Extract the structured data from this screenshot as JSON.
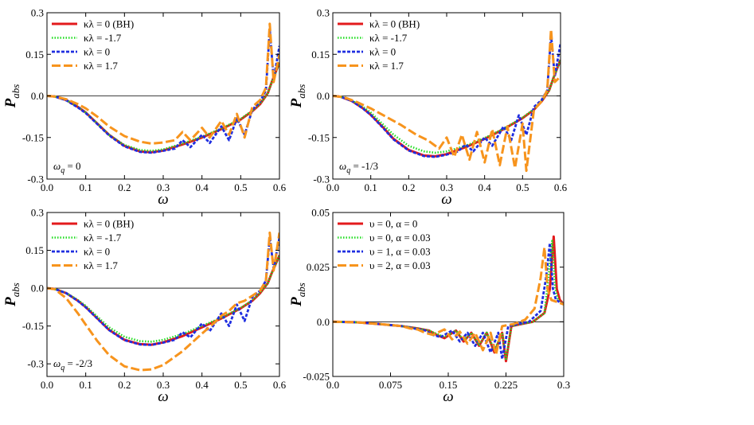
{
  "chart_data": [
    {
      "type": "line",
      "panel": "top-left",
      "xlabel": "ω",
      "ylabel": "P",
      "ylabel_sub": "abs",
      "xlim": [
        0,
        0.6
      ],
      "ylim": [
        -0.3,
        0.3
      ],
      "xticks": [
        "0.0",
        "0.1",
        "0.2",
        "0.3",
        "0.4",
        "0.5",
        "0.6"
      ],
      "yticks": [
        "-0.3",
        "-0.15",
        "0.0",
        "0.15",
        "0.3"
      ],
      "annotation": "ω",
      "annotation_sub": "q",
      "annotation_value": " = 0",
      "legend_position": "top-left",
      "series": [
        {
          "name": "κλ = 0 (BH)",
          "color": "#e31a1c",
          "style": "solid",
          "x": [
            0,
            0.02,
            0.05,
            0.08,
            0.1,
            0.13,
            0.16,
            0.2,
            0.24,
            0.27,
            0.3,
            0.35,
            0.4,
            0.45,
            0.5,
            0.53,
            0.55,
            0.57,
            0.58,
            0.6
          ],
          "y": [
            0,
            -0.002,
            -0.015,
            -0.04,
            -0.06,
            -0.1,
            -0.14,
            -0.18,
            -0.2,
            -0.203,
            -0.197,
            -0.175,
            -0.15,
            -0.12,
            -0.085,
            -0.055,
            -0.03,
            0.01,
            0.05,
            0.12
          ]
        },
        {
          "name": "κλ = -1.7",
          "color": "#22dd22",
          "style": "dotted",
          "x": [
            0,
            0.02,
            0.05,
            0.08,
            0.1,
            0.13,
            0.16,
            0.2,
            0.24,
            0.27,
            0.3,
            0.35,
            0.4,
            0.45,
            0.5,
            0.53,
            0.55,
            0.57,
            0.58,
            0.6
          ],
          "y": [
            0,
            -0.002,
            -0.015,
            -0.04,
            -0.06,
            -0.1,
            -0.14,
            -0.177,
            -0.195,
            -0.198,
            -0.193,
            -0.172,
            -0.147,
            -0.118,
            -0.083,
            -0.053,
            -0.028,
            0.01,
            0.05,
            0.12
          ]
        },
        {
          "name": "κλ = 0",
          "color": "#1f2ee0",
          "style": "dashed",
          "x": [
            0,
            0.02,
            0.05,
            0.08,
            0.1,
            0.13,
            0.16,
            0.2,
            0.24,
            0.27,
            0.3,
            0.33,
            0.35,
            0.37,
            0.4,
            0.42,
            0.45,
            0.47,
            0.49,
            0.51,
            0.53,
            0.55,
            0.565,
            0.575,
            0.585,
            0.6
          ],
          "y": [
            0,
            -0.002,
            -0.016,
            -0.042,
            -0.062,
            -0.102,
            -0.142,
            -0.182,
            -0.202,
            -0.205,
            -0.198,
            -0.19,
            -0.16,
            -0.185,
            -0.14,
            -0.17,
            -0.11,
            -0.16,
            -0.08,
            -0.14,
            -0.05,
            -0.02,
            0.02,
            0.24,
            0.06,
            0.18
          ]
        },
        {
          "name": "κλ = 1.7",
          "color": "#f7941d",
          "style": "longdash",
          "x": [
            0,
            0.02,
            0.05,
            0.08,
            0.1,
            0.13,
            0.16,
            0.2,
            0.24,
            0.27,
            0.3,
            0.33,
            0.35,
            0.37,
            0.4,
            0.42,
            0.45,
            0.47,
            0.49,
            0.51,
            0.53,
            0.55,
            0.565,
            0.575,
            0.585,
            0.6
          ],
          "y": [
            0,
            -0.002,
            -0.012,
            -0.03,
            -0.045,
            -0.075,
            -0.11,
            -0.145,
            -0.165,
            -0.172,
            -0.168,
            -0.16,
            -0.13,
            -0.16,
            -0.115,
            -0.15,
            -0.09,
            -0.14,
            -0.065,
            -0.15,
            -0.04,
            -0.015,
            0.03,
            0.26,
            0.05,
            0.15
          ]
        }
      ]
    },
    {
      "type": "line",
      "panel": "top-right",
      "xlabel": "ω",
      "ylabel": "P",
      "ylabel_sub": "abs",
      "xlim": [
        0,
        0.6
      ],
      "ylim": [
        -0.3,
        0.3
      ],
      "xticks": [
        "0.0",
        "0.1",
        "0.2",
        "0.3",
        "0.4",
        "0.5",
        "0.6"
      ],
      "yticks": [
        "-0.3",
        "-0.15",
        "0.0",
        "0.15",
        "0.3"
      ],
      "annotation": "ω",
      "annotation_sub": "q",
      "annotation_value": " = -1/3",
      "legend_position": "top-left",
      "series": [
        {
          "name": "κλ = 0 (BH)",
          "color": "#e31a1c",
          "style": "solid",
          "x": [
            0,
            0.02,
            0.05,
            0.08,
            0.1,
            0.13,
            0.16,
            0.2,
            0.24,
            0.27,
            0.3,
            0.35,
            0.4,
            0.45,
            0.5,
            0.53,
            0.55,
            0.57,
            0.58,
            0.6
          ],
          "y": [
            0,
            -0.003,
            -0.018,
            -0.045,
            -0.068,
            -0.11,
            -0.155,
            -0.195,
            -0.215,
            -0.218,
            -0.21,
            -0.185,
            -0.155,
            -0.12,
            -0.08,
            -0.05,
            -0.02,
            0.02,
            0.06,
            0.13
          ]
        },
        {
          "name": "κλ = -1.7",
          "color": "#22dd22",
          "style": "dotted",
          "x": [
            0,
            0.02,
            0.05,
            0.08,
            0.1,
            0.13,
            0.16,
            0.2,
            0.24,
            0.27,
            0.3,
            0.35,
            0.4,
            0.45,
            0.5,
            0.53,
            0.55,
            0.57,
            0.58,
            0.6
          ],
          "y": [
            0,
            -0.003,
            -0.016,
            -0.04,
            -0.06,
            -0.1,
            -0.14,
            -0.18,
            -0.2,
            -0.205,
            -0.2,
            -0.18,
            -0.152,
            -0.118,
            -0.078,
            -0.048,
            -0.018,
            0.02,
            0.06,
            0.13
          ]
        },
        {
          "name": "κλ = 0",
          "color": "#1f2ee0",
          "style": "dashed",
          "x": [
            0,
            0.02,
            0.05,
            0.08,
            0.1,
            0.13,
            0.16,
            0.2,
            0.24,
            0.27,
            0.3,
            0.33,
            0.35,
            0.37,
            0.4,
            0.42,
            0.45,
            0.47,
            0.49,
            0.51,
            0.53,
            0.55,
            0.565,
            0.575,
            0.585,
            0.6
          ],
          "y": [
            0,
            -0.003,
            -0.018,
            -0.046,
            -0.069,
            -0.112,
            -0.157,
            -0.197,
            -0.217,
            -0.22,
            -0.212,
            -0.2,
            -0.175,
            -0.2,
            -0.15,
            -0.18,
            -0.11,
            -0.16,
            -0.07,
            -0.14,
            -0.04,
            -0.015,
            0.02,
            0.22,
            0.07,
            0.19
          ]
        },
        {
          "name": "κλ = 1.7",
          "color": "#f7941d",
          "style": "longdash",
          "x": [
            0,
            0.03,
            0.06,
            0.1,
            0.14,
            0.18,
            0.22,
            0.25,
            0.28,
            0.3,
            0.32,
            0.34,
            0.36,
            0.38,
            0.4,
            0.42,
            0.44,
            0.46,
            0.48,
            0.5,
            0.51,
            0.53,
            0.55,
            0.565,
            0.575,
            0.585,
            0.6
          ],
          "y": [
            0,
            -0.005,
            -0.02,
            -0.045,
            -0.075,
            -0.105,
            -0.14,
            -0.16,
            -0.19,
            -0.15,
            -0.22,
            -0.14,
            -0.23,
            -0.13,
            -0.24,
            -0.12,
            -0.25,
            -0.11,
            -0.26,
            -0.1,
            -0.27,
            -0.05,
            -0.02,
            0.02,
            0.24,
            0.05,
            0.07
          ]
        }
      ]
    },
    {
      "type": "line",
      "panel": "bottom-left",
      "xlabel": "ω",
      "ylabel": "P",
      "ylabel_sub": "abs",
      "xlim": [
        0,
        0.6
      ],
      "ylim": [
        -0.35,
        0.3
      ],
      "xticks": [
        "0.0",
        "0.1",
        "0.2",
        "0.3",
        "0.4",
        "0.5",
        "0.6"
      ],
      "yticks": [
        "-0.3",
        "-0.15",
        "0.0",
        "0.15",
        "0.3"
      ],
      "annotation": "ω",
      "annotation_sub": "q",
      "annotation_value": " = -2/3",
      "legend_position": "top-left",
      "series": [
        {
          "name": "κλ = 0 (BH)",
          "color": "#e31a1c",
          "style": "solid",
          "x": [
            0,
            0.02,
            0.05,
            0.08,
            0.1,
            0.13,
            0.16,
            0.2,
            0.24,
            0.27,
            0.3,
            0.35,
            0.4,
            0.45,
            0.5,
            0.53,
            0.55,
            0.57,
            0.58,
            0.6
          ],
          "y": [
            0,
            -0.003,
            -0.02,
            -0.05,
            -0.075,
            -0.12,
            -0.165,
            -0.205,
            -0.222,
            -0.224,
            -0.215,
            -0.19,
            -0.155,
            -0.12,
            -0.08,
            -0.05,
            -0.02,
            0.02,
            0.06,
            0.13
          ]
        },
        {
          "name": "κλ = -1.7",
          "color": "#22dd22",
          "style": "dotted",
          "x": [
            0,
            0.02,
            0.05,
            0.08,
            0.1,
            0.13,
            0.16,
            0.2,
            0.24,
            0.27,
            0.3,
            0.35,
            0.4,
            0.45,
            0.5,
            0.53,
            0.55,
            0.57,
            0.58,
            0.6
          ],
          "y": [
            0,
            -0.003,
            -0.019,
            -0.047,
            -0.07,
            -0.113,
            -0.155,
            -0.193,
            -0.21,
            -0.212,
            -0.205,
            -0.182,
            -0.15,
            -0.117,
            -0.078,
            -0.048,
            -0.018,
            0.02,
            0.06,
            0.13
          ]
        },
        {
          "name": "κλ = 0",
          "color": "#1f2ee0",
          "style": "dashed",
          "x": [
            0,
            0.02,
            0.05,
            0.08,
            0.1,
            0.13,
            0.16,
            0.2,
            0.24,
            0.27,
            0.3,
            0.33,
            0.35,
            0.37,
            0.4,
            0.42,
            0.45,
            0.47,
            0.49,
            0.51,
            0.53,
            0.55,
            0.565,
            0.575,
            0.585,
            0.6
          ],
          "y": [
            0,
            -0.003,
            -0.02,
            -0.051,
            -0.076,
            -0.121,
            -0.166,
            -0.206,
            -0.223,
            -0.225,
            -0.216,
            -0.205,
            -0.175,
            -0.195,
            -0.14,
            -0.17,
            -0.1,
            -0.15,
            -0.065,
            -0.13,
            -0.035,
            -0.01,
            0.03,
            0.2,
            0.08,
            0.2
          ]
        },
        {
          "name": "κλ = 1.7",
          "color": "#f7941d",
          "style": "longdash",
          "x": [
            0,
            0.02,
            0.05,
            0.08,
            0.1,
            0.13,
            0.16,
            0.2,
            0.24,
            0.27,
            0.3,
            0.35,
            0.4,
            0.43,
            0.45,
            0.47,
            0.49,
            0.51,
            0.53,
            0.55,
            0.565,
            0.575,
            0.585,
            0.6
          ],
          "y": [
            0,
            -0.004,
            -0.04,
            -0.1,
            -0.145,
            -0.21,
            -0.265,
            -0.31,
            -0.325,
            -0.322,
            -0.305,
            -0.25,
            -0.18,
            -0.14,
            -0.11,
            -0.09,
            -0.06,
            -0.05,
            -0.03,
            -0.01,
            0.03,
            0.22,
            0.07,
            0.22
          ]
        }
      ]
    },
    {
      "type": "line",
      "panel": "bottom-right",
      "xlabel": "ω",
      "ylabel": "P",
      "ylabel_sub": "abs",
      "xlim": [
        0,
        0.3
      ],
      "ylim": [
        -0.025,
        0.05
      ],
      "xticks": [
        "0.0",
        "0.075",
        "0.15",
        "0.225",
        "0.3"
      ],
      "yticks": [
        "-0.025",
        "0.0",
        "0.025",
        "0.05"
      ],
      "legend_position": "top-left",
      "series": [
        {
          "name": "υ = 0, α = 0",
          "color": "#e31a1c",
          "style": "solid",
          "x": [
            0,
            0.03,
            0.06,
            0.09,
            0.11,
            0.125,
            0.135,
            0.145,
            0.16,
            0.17,
            0.18,
            0.19,
            0.2,
            0.21,
            0.22,
            0.225,
            0.232,
            0.245,
            0.26,
            0.275,
            0.282,
            0.287,
            0.291,
            0.295,
            0.3
          ],
          "y": [
            0,
            -0.0002,
            -0.001,
            -0.002,
            -0.003,
            -0.004,
            -0.006,
            -0.0075,
            -0.004,
            -0.009,
            -0.005,
            -0.011,
            -0.005,
            -0.014,
            -0.005,
            -0.018,
            -0.002,
            -0.001,
            0,
            0.004,
            0.015,
            0.039,
            0.015,
            0.01,
            0.008
          ]
        },
        {
          "name": "υ = 0, α = 0.03",
          "color": "#22dd22",
          "style": "dotted",
          "x": [
            0,
            0.03,
            0.06,
            0.09,
            0.11,
            0.125,
            0.135,
            0.145,
            0.16,
            0.17,
            0.18,
            0.19,
            0.2,
            0.21,
            0.22,
            0.225,
            0.232,
            0.245,
            0.26,
            0.275,
            0.28,
            0.285,
            0.289,
            0.293,
            0.3
          ],
          "y": [
            0,
            -0.0002,
            -0.001,
            -0.002,
            -0.003,
            -0.004,
            -0.0055,
            -0.007,
            -0.004,
            -0.0085,
            -0.005,
            -0.0105,
            -0.005,
            -0.013,
            -0.005,
            -0.017,
            -0.002,
            -0.001,
            0,
            0.004,
            0.02,
            0.037,
            0.015,
            0.01,
            0.008
          ]
        },
        {
          "name": "υ = 1, α = 0.03",
          "color": "#1f2ee0",
          "style": "dashed",
          "x": [
            0,
            0.03,
            0.06,
            0.09,
            0.105,
            0.12,
            0.13,
            0.14,
            0.155,
            0.165,
            0.175,
            0.185,
            0.195,
            0.205,
            0.215,
            0.22,
            0.228,
            0.24,
            0.255,
            0.27,
            0.277,
            0.282,
            0.286,
            0.29,
            0.3
          ],
          "y": [
            0,
            -0.0002,
            -0.001,
            -0.002,
            -0.003,
            -0.004,
            -0.006,
            -0.007,
            -0.004,
            -0.009,
            -0.005,
            -0.011,
            -0.005,
            -0.014,
            -0.005,
            -0.017,
            -0.002,
            -0.001,
            0,
            0.005,
            0.02,
            0.036,
            0.015,
            0.01,
            0.008
          ]
        },
        {
          "name": "υ = 2, α = 0.03",
          "color": "#f7941d",
          "style": "longdash",
          "x": [
            0,
            0.03,
            0.06,
            0.09,
            0.1,
            0.11,
            0.12,
            0.13,
            0.145,
            0.155,
            0.165,
            0.175,
            0.185,
            0.195,
            0.205,
            0.212,
            0.22,
            0.235,
            0.25,
            0.262,
            0.27,
            0.275,
            0.279,
            0.284,
            0.3
          ],
          "y": [
            0,
            -0.0002,
            -0.001,
            -0.002,
            -0.003,
            -0.0035,
            -0.005,
            -0.006,
            -0.0035,
            -0.008,
            -0.0045,
            -0.01,
            -0.005,
            -0.013,
            -0.005,
            -0.015,
            -0.002,
            -0.001,
            0.001,
            0.006,
            0.02,
            0.034,
            0.015,
            0.01,
            0.008
          ]
        }
      ]
    }
  ]
}
